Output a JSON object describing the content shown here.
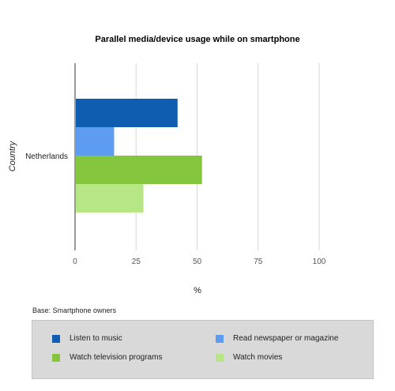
{
  "chart_data": {
    "type": "bar",
    "orientation": "horizontal",
    "title": "Parallel media/device usage while on smartphone",
    "xlabel": "%",
    "ylabel": "Country",
    "categories": [
      "Netherlands"
    ],
    "series": [
      {
        "name": "Listen to music",
        "values": [
          42
        ],
        "color": "#0f5db0"
      },
      {
        "name": "Read newspaper or magazine",
        "values": [
          16
        ],
        "color": "#5d9cf0"
      },
      {
        "name": "Watch television programs",
        "values": [
          52
        ],
        "color": "#86c53e"
      },
      {
        "name": "Watch movies",
        "values": [
          28
        ],
        "color": "#b6e686"
      }
    ],
    "xlim": [
      0,
      100
    ],
    "xticks": [
      "0",
      "25",
      "50",
      "75",
      "100"
    ],
    "grid": true,
    "legend_position": "bottom",
    "footnote": "Base: Smartphone owners"
  }
}
